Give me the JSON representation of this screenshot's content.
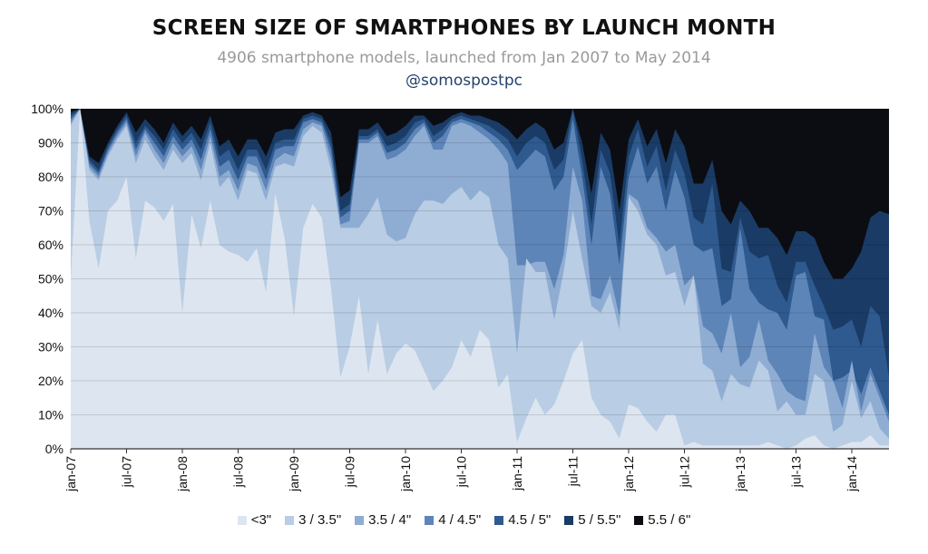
{
  "header": {
    "title": "SCREEN SIZE OF SMARTPHONES BY LAUNCH MONTH",
    "subtitle": "4906 smartphone models, launched from Jan 2007 to May 2014",
    "handle": "@somospostpc"
  },
  "chart_data": {
    "type": "area",
    "stacked": true,
    "percent": true,
    "ylim": [
      0,
      100
    ],
    "yticks": [
      "0%",
      "10%",
      "20%",
      "30%",
      "40%",
      "50%",
      "60%",
      "70%",
      "80%",
      "90%",
      "100%"
    ],
    "xticks": [
      {
        "label": "jan-07",
        "index": 0
      },
      {
        "label": "jul-07",
        "index": 6
      },
      {
        "label": "jan-08",
        "index": 12
      },
      {
        "label": "jul-08",
        "index": 18
      },
      {
        "label": "jan-09",
        "index": 24
      },
      {
        "label": "jul-09",
        "index": 30
      },
      {
        "label": "jan-10",
        "index": 36
      },
      {
        "label": "jul-10",
        "index": 42
      },
      {
        "label": "jan-11",
        "index": 48
      },
      {
        "label": "jul-11",
        "index": 54
      },
      {
        "label": "jan-12",
        "index": 60
      },
      {
        "label": "jul-12",
        "index": 66
      },
      {
        "label": "jan-13",
        "index": 72
      },
      {
        "label": "jul-13",
        "index": 78
      },
      {
        "label": "jan-14",
        "index": 84
      }
    ],
    "x_count": 89,
    "grid": true,
    "legend_position": "bottom",
    "series": [
      {
        "name": "<3\"",
        "color": "#dde6f0",
        "cumulative": [
          50,
          100,
          67,
          53,
          70,
          73,
          80,
          56,
          73,
          71,
          67,
          72,
          40,
          69,
          59,
          73,
          60,
          58,
          57,
          55,
          59,
          46,
          75,
          62,
          39,
          65,
          72,
          68,
          47,
          21,
          30,
          45,
          22,
          38,
          22,
          28,
          31,
          29,
          23,
          17,
          20,
          24,
          32,
          27,
          35,
          32,
          18,
          22,
          2,
          9,
          15,
          10,
          13,
          20,
          28,
          32,
          15,
          10,
          8,
          3,
          13,
          12,
          8,
          5,
          10,
          10,
          1,
          2,
          1,
          1,
          1,
          1,
          1,
          1,
          1,
          2,
          1,
          0,
          1,
          3,
          4,
          1,
          0,
          1,
          2,
          2,
          4,
          1,
          1
        ]
      },
      {
        "name": "3 / 3.5\"",
        "color": "#b9cde4",
        "cumulative": [
          95,
          100,
          82,
          79,
          86,
          91,
          95,
          84,
          91,
          86,
          82,
          88,
          84,
          87,
          79,
          90,
          77,
          80,
          73,
          82,
          81,
          73,
          83,
          84,
          83,
          92,
          95,
          93,
          82,
          65,
          65,
          65,
          69,
          74,
          63,
          61,
          62,
          69,
          73,
          73,
          72,
          75,
          77,
          73,
          76,
          74,
          60,
          56,
          28,
          56,
          52,
          52,
          38,
          52,
          70,
          56,
          42,
          40,
          46,
          35,
          74,
          70,
          63,
          60,
          51,
          52,
          42,
          51,
          25,
          23,
          14,
          22,
          19,
          18,
          26,
          23,
          11,
          14,
          10,
          10,
          22,
          20,
          5,
          7,
          20,
          9,
          14,
          6,
          3
        ]
      },
      {
        "name": "3.5 / 4\"",
        "color": "#8fadd3",
        "cumulative": [
          96,
          100,
          83,
          80,
          87,
          92,
          96,
          86,
          93,
          88,
          84,
          90,
          86,
          89,
          82,
          92,
          80,
          82,
          76,
          84,
          83,
          76,
          85,
          87,
          86,
          94,
          96,
          95,
          85,
          66,
          67,
          90,
          90,
          92,
          85,
          86,
          88,
          92,
          95,
          88,
          88,
          95,
          96,
          95,
          93,
          91,
          88,
          84,
          54,
          54,
          55,
          55,
          47,
          57,
          83,
          73,
          45,
          44,
          51,
          39,
          75,
          73,
          65,
          62,
          58,
          60,
          48,
          51,
          36,
          34,
          28,
          40,
          24,
          27,
          38,
          26,
          22,
          17,
          15,
          14,
          34,
          24,
          20,
          12,
          26,
          11,
          22,
          15,
          8
        ]
      },
      {
        "name": "4 / 4.5\"",
        "color": "#5e85b8",
        "cumulative": [
          97,
          100,
          84,
          81,
          88,
          93,
          97,
          88,
          94,
          90,
          86,
          92,
          88,
          91,
          85,
          94,
          83,
          85,
          79,
          86,
          86,
          79,
          88,
          89,
          89,
          96,
          97,
          96,
          88,
          68,
          70,
          91,
          91,
          93,
          87,
          88,
          90,
          94,
          96,
          90,
          92,
          96,
          97,
          96,
          95,
          93,
          91,
          88,
          82,
          85,
          88,
          86,
          76,
          80,
          97,
          80,
          60,
          83,
          75,
          54,
          80,
          89,
          78,
          83,
          70,
          82,
          74,
          60,
          58,
          59,
          42,
          44,
          65,
          47,
          43,
          41,
          40,
          35,
          51,
          52,
          39,
          38,
          20,
          21,
          23,
          16,
          24,
          17,
          10
        ]
      },
      {
        "name": "4.5 / 5\"",
        "color": "#2e5a8f",
        "cumulative": [
          98,
          100,
          85,
          82,
          89,
          94,
          98,
          90,
          95,
          92,
          88,
          94,
          90,
          93,
          88,
          96,
          86,
          88,
          82,
          88,
          88,
          82,
          90,
          91,
          91,
          97,
          98,
          97,
          90,
          70,
          72,
          92,
          92,
          94,
          89,
          90,
          92,
          96,
          97,
          92,
          94,
          97,
          98,
          97,
          96,
          95,
          93,
          91,
          86,
          90,
          92,
          90,
          82,
          85,
          100,
          85,
          66,
          88,
          81,
          60,
          86,
          94,
          83,
          89,
          76,
          88,
          81,
          68,
          66,
          78,
          53,
          52,
          68,
          58,
          56,
          57,
          48,
          43,
          55,
          55,
          48,
          42,
          35,
          36,
          38,
          30,
          42,
          39,
          21
        ]
      },
      {
        "name": "5 / 5.5\"",
        "color": "#1a3b65",
        "cumulative": [
          99,
          100,
          86,
          84,
          90,
          95,
          99,
          93,
          97,
          94,
          90,
          96,
          92,
          95,
          91,
          98,
          89,
          91,
          86,
          91,
          91,
          86,
          93,
          94,
          94,
          98,
          99,
          98,
          93,
          74,
          76,
          94,
          94,
          96,
          92,
          93,
          95,
          98,
          98,
          95,
          96,
          98,
          99,
          98,
          98,
          97,
          96,
          94,
          91,
          94,
          96,
          94,
          88,
          90,
          100,
          90,
          75,
          93,
          88,
          70,
          91,
          97,
          89,
          94,
          84,
          94,
          89,
          78,
          78,
          85,
          70,
          66,
          73,
          70,
          65,
          65,
          62,
          57,
          64,
          64,
          62,
          55,
          50,
          50,
          53,
          58,
          68,
          70,
          69
        ]
      },
      {
        "name": "5.5 / 6\"",
        "color": "#0b0d12",
        "cumulative": [
          100,
          100,
          100,
          100,
          100,
          100,
          100,
          100,
          100,
          100,
          100,
          100,
          100,
          100,
          100,
          100,
          100,
          100,
          100,
          100,
          100,
          100,
          100,
          100,
          100,
          100,
          100,
          100,
          100,
          100,
          100,
          100,
          100,
          100,
          100,
          100,
          100,
          100,
          100,
          100,
          100,
          100,
          100,
          100,
          100,
          100,
          100,
          100,
          100,
          100,
          100,
          100,
          100,
          100,
          100,
          100,
          100,
          100,
          100,
          100,
          100,
          100,
          100,
          100,
          100,
          100,
          100,
          100,
          100,
          100,
          100,
          100,
          100,
          100,
          100,
          100,
          100,
          100,
          100,
          100,
          100,
          100,
          100,
          100,
          100,
          100,
          100,
          100,
          100
        ]
      }
    ],
    "series_top_boundary": [
      100,
      100,
      100,
      100,
      100,
      100,
      100,
      100,
      100,
      100,
      100,
      100,
      100,
      100,
      100,
      100,
      100,
      100,
      100,
      100,
      100,
      100,
      100,
      100,
      100,
      100,
      100,
      100,
      100,
      100,
      100,
      100,
      100,
      100,
      100,
      100,
      100,
      100,
      100,
      100,
      100,
      100,
      100,
      100,
      100,
      100,
      100,
      100,
      100,
      100,
      100,
      100,
      100,
      100,
      100,
      100,
      100,
      100,
      100,
      100,
      100,
      100,
      100,
      100,
      100,
      100,
      100,
      100,
      100,
      100,
      100,
      100,
      100,
      100,
      100,
      100,
      100,
      100,
      100,
      100,
      100,
      100,
      100,
      100,
      100,
      100,
      100,
      100,
      100
    ]
  }
}
